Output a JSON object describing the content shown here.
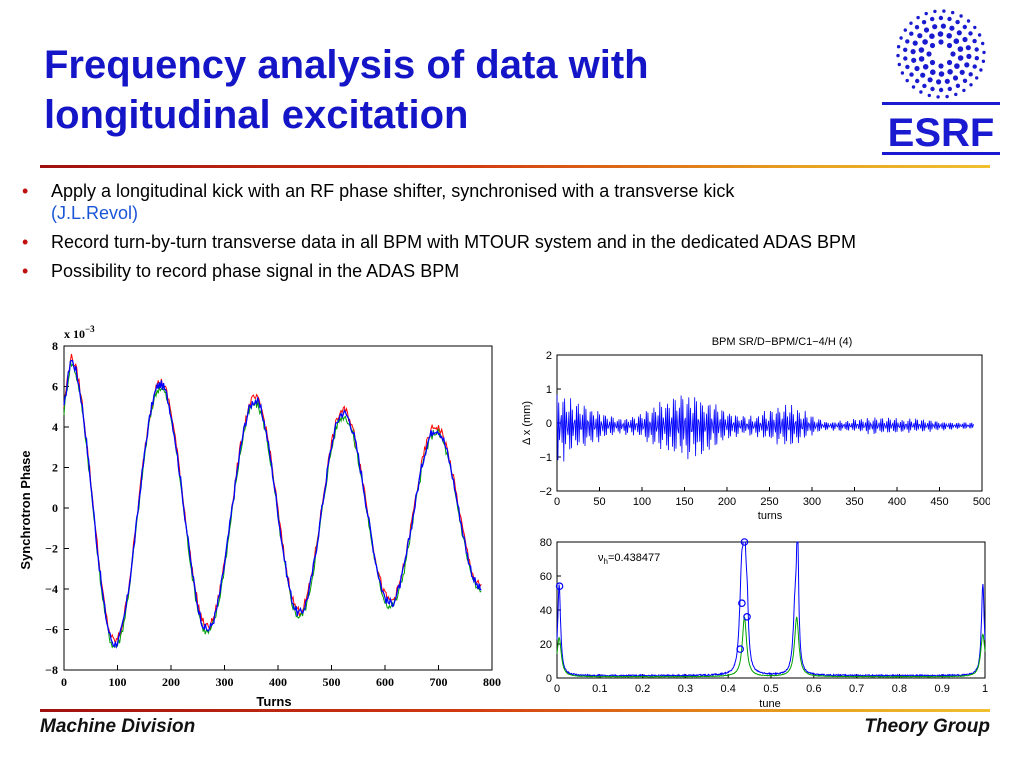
{
  "slide": {
    "title": "Frequency analysis of data with longitudinal excitation",
    "logo_text": "ESRF",
    "bullets": [
      {
        "text": "Apply a longitudinal kick with an RF phase shifter, synchronised with a transverse kick",
        "ref": "(J.L.Revol)"
      },
      {
        "text": "Record turn-by-turn transverse data in all BPM with MTOUR system and in the dedicated ADAS BPM",
        "ref": ""
      },
      {
        "text": "Possibility to record phase signal in the ADAS BPM",
        "ref": ""
      }
    ],
    "bullet_glyph": "•",
    "footer_left": "Machine Division",
    "footer_right": "Theory Group",
    "colors": {
      "title": "#1515c8",
      "accent_rule": "#c8401a",
      "logo": "#1a1ad0",
      "series_blue": "#0000ff",
      "series_green": "#00a000",
      "series_red": "#ff0000"
    }
  },
  "chart_data": [
    {
      "type": "line",
      "title": "",
      "xlabel": "Turns",
      "ylabel": "Synchrotron Phase",
      "multiplier_label": "x 10",
      "multiplier_exp": "−3",
      "xlim": [
        0,
        800
      ],
      "ylim": [
        -8,
        8
      ],
      "xticks": [
        0,
        100,
        200,
        300,
        400,
        500,
        600,
        700,
        800
      ],
      "yticks": [
        8,
        6,
        4,
        2,
        0,
        -2,
        -4,
        -6,
        -8
      ],
      "grid": false,
      "signal": {
        "period_turns": 164,
        "first_peak_turn": 12,
        "decay_per_turn": 0.0012,
        "start_turn": 0,
        "end_turn": 780
      },
      "extrema": [
        {
          "x": 12,
          "y": 7.3
        },
        {
          "x": 95,
          "y": -6.7
        },
        {
          "x": 180,
          "y": 6.1
        },
        {
          "x": 268,
          "y": -6.0
        },
        {
          "x": 357,
          "y": 5.3
        },
        {
          "x": 440,
          "y": -5.2
        },
        {
          "x": 522,
          "y": 4.7
        },
        {
          "x": 610,
          "y": -4.7
        },
        {
          "x": 695,
          "y": 3.9
        },
        {
          "x": 780,
          "y": -4.0
        }
      ],
      "series": [
        {
          "name": "",
          "color": "#0000ff"
        },
        {
          "name": "",
          "color": "#00a000"
        },
        {
          "name": "",
          "color": "#ff0000"
        }
      ]
    },
    {
      "type": "line",
      "title": "BPM SR/D−BPM/C1−4/H (4)",
      "xlabel": "turns",
      "ylabel": "Δ x (mm)",
      "xlim": [
        0,
        500
      ],
      "ylim": [
        -2,
        2
      ],
      "xticks": [
        0,
        50,
        100,
        150,
        200,
        250,
        300,
        350,
        400,
        450,
        500
      ],
      "xtick_labels": [
        "0",
        "50",
        "100",
        "150",
        "200",
        "250",
        "300",
        "350",
        "400",
        "450",
        "500"
      ],
      "yticks": [
        2,
        1,
        0,
        -1,
        -2
      ],
      "grid": false,
      "envelope": [
        {
          "x": 0,
          "amp": 0.95
        },
        {
          "x": 30,
          "amp": 0.55
        },
        {
          "x": 75,
          "amp": 0.22
        },
        {
          "x": 150,
          "amp": 0.85
        },
        {
          "x": 225,
          "amp": 0.25
        },
        {
          "x": 270,
          "amp": 0.55
        },
        {
          "x": 320,
          "amp": 0.12
        },
        {
          "x": 380,
          "amp": 0.22
        },
        {
          "x": 500,
          "amp": 0.08
        }
      ],
      "tune": 0.438477,
      "series": [
        {
          "name": "",
          "color": "#0000ff"
        }
      ]
    },
    {
      "type": "line",
      "title": "",
      "xlabel": "tune",
      "ylabel": "",
      "annotation": "ν",
      "annotation_sub": "h",
      "annotation_value": "=0.438477",
      "xlim": [
        0,
        1
      ],
      "ylim": [
        0,
        80
      ],
      "xticks": [
        0,
        0.1,
        0.2,
        0.3,
        0.4,
        0.5,
        0.6,
        0.7,
        0.8,
        0.9,
        1
      ],
      "xtick_labels": [
        "0",
        "0.1",
        "0.2",
        "0.3",
        "0.4",
        "0.5",
        "0.6",
        "0.7",
        "0.8",
        "0.9",
        "1"
      ],
      "yticks": [
        80,
        60,
        40,
        20,
        0
      ],
      "grid": false,
      "peaks_blue": [
        {
          "x": 0.005,
          "y": 54,
          "w": 0.004
        },
        {
          "x": 0.428,
          "y": 17,
          "w": 0.005
        },
        {
          "x": 0.432,
          "y": 44,
          "w": 0.004
        },
        {
          "x": 0.438,
          "y": 80,
          "w": 0.003
        },
        {
          "x": 0.444,
          "y": 36,
          "w": 0.004
        },
        {
          "x": 0.562,
          "y": 80,
          "w": 0.003
        },
        {
          "x": 0.556,
          "y": 35,
          "w": 0.005
        },
        {
          "x": 0.995,
          "y": 54,
          "w": 0.004
        }
      ],
      "peaks_green": [
        {
          "x": 0.005,
          "y": 23,
          "w": 0.006
        },
        {
          "x": 0.438,
          "y": 35,
          "w": 0.006
        },
        {
          "x": 0.56,
          "y": 35,
          "w": 0.006
        },
        {
          "x": 0.995,
          "y": 25,
          "w": 0.006
        }
      ],
      "markers": [
        {
          "x": 0.006,
          "y": 54
        },
        {
          "x": 0.428,
          "y": 17
        },
        {
          "x": 0.432,
          "y": 44
        },
        {
          "x": 0.438,
          "y": 80
        },
        {
          "x": 0.444,
          "y": 36
        }
      ],
      "series": [
        {
          "name": "",
          "color": "#0000ff"
        },
        {
          "name": "",
          "color": "#00a000"
        }
      ]
    }
  ]
}
